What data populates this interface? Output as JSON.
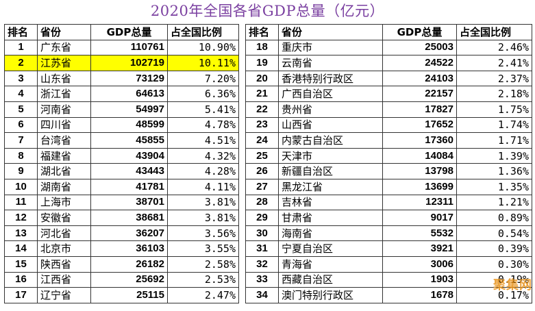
{
  "chart_data": {
    "type": "table",
    "title": "2020年全国各省GDP总量（亿元）",
    "columns": [
      "排名",
      "省份",
      "GDP总量",
      "占全国比例"
    ],
    "highlight_rank": 2,
    "highlight_color": "#ffff00",
    "title_color": "#7a3fa0",
    "rows": [
      {
        "rank": "1",
        "province": "广东省",
        "gdp": "110761",
        "share": "10.90%"
      },
      {
        "rank": "2",
        "province": "江苏省",
        "gdp": "102719",
        "share": "10.11%"
      },
      {
        "rank": "3",
        "province": "山东省",
        "gdp": "73129",
        "share": "7.20%"
      },
      {
        "rank": "4",
        "province": "浙江省",
        "gdp": "64613",
        "share": "6.36%"
      },
      {
        "rank": "5",
        "province": "河南省",
        "gdp": "54997",
        "share": "5.41%"
      },
      {
        "rank": "6",
        "province": "四川省",
        "gdp": "48599",
        "share": "4.78%"
      },
      {
        "rank": "7",
        "province": "台湾省",
        "gdp": "45855",
        "share": "4.51%"
      },
      {
        "rank": "8",
        "province": "福建省",
        "gdp": "43904",
        "share": "4.32%"
      },
      {
        "rank": "9",
        "province": "湖北省",
        "gdp": "43443",
        "share": "4.28%"
      },
      {
        "rank": "10",
        "province": "湖南省",
        "gdp": "41781",
        "share": "4.11%"
      },
      {
        "rank": "11",
        "province": "上海市",
        "gdp": "38701",
        "share": "3.81%"
      },
      {
        "rank": "12",
        "province": "安徽省",
        "gdp": "38681",
        "share": "3.81%"
      },
      {
        "rank": "13",
        "province": "河北省",
        "gdp": "36207",
        "share": "3.56%"
      },
      {
        "rank": "14",
        "province": "北京市",
        "gdp": "36103",
        "share": "3.55%"
      },
      {
        "rank": "15",
        "province": "陕西省",
        "gdp": "26182",
        "share": "2.58%"
      },
      {
        "rank": "16",
        "province": "江西省",
        "gdp": "25692",
        "share": "2.53%"
      },
      {
        "rank": "17",
        "province": "辽宁省",
        "gdp": "25115",
        "share": "2.47%"
      },
      {
        "rank": "18",
        "province": "重庆市",
        "gdp": "25003",
        "share": "2.46%"
      },
      {
        "rank": "19",
        "province": "云南省",
        "gdp": "24522",
        "share": "2.41%"
      },
      {
        "rank": "20",
        "province": "香港特别行政区",
        "gdp": "24103",
        "share": "2.37%"
      },
      {
        "rank": "21",
        "province": "广西自治区",
        "gdp": "22157",
        "share": "2.18%"
      },
      {
        "rank": "22",
        "province": "贵州省",
        "gdp": "17827",
        "share": "1.75%"
      },
      {
        "rank": "23",
        "province": "山西省",
        "gdp": "17652",
        "share": "1.74%"
      },
      {
        "rank": "24",
        "province": "内蒙古自治区",
        "gdp": "17360",
        "share": "1.71%"
      },
      {
        "rank": "25",
        "province": "天津市",
        "gdp": "14084",
        "share": "1.39%"
      },
      {
        "rank": "26",
        "province": "新疆自治区",
        "gdp": "13798",
        "share": "1.36%"
      },
      {
        "rank": "27",
        "province": "黑龙江省",
        "gdp": "13699",
        "share": "1.35%"
      },
      {
        "rank": "28",
        "province": "吉林省",
        "gdp": "12311",
        "share": "1.21%"
      },
      {
        "rank": "29",
        "province": "甘肃省",
        "gdp": "9017",
        "share": "0.89%"
      },
      {
        "rank": "30",
        "province": "海南省",
        "gdp": "5532",
        "share": "0.54%"
      },
      {
        "rank": "31",
        "province": "宁夏自治区",
        "gdp": "3921",
        "share": "0.39%"
      },
      {
        "rank": "32",
        "province": "青海省",
        "gdp": "3006",
        "share": "0.30%"
      },
      {
        "rank": "33",
        "province": "西藏自治区",
        "gdp": "1903",
        "share": "0.19%"
      },
      {
        "rank": "34",
        "province": "澳门特别行政区",
        "gdp": "1678",
        "share": "0.17%"
      }
    ]
  },
  "watermark": "聚集网"
}
